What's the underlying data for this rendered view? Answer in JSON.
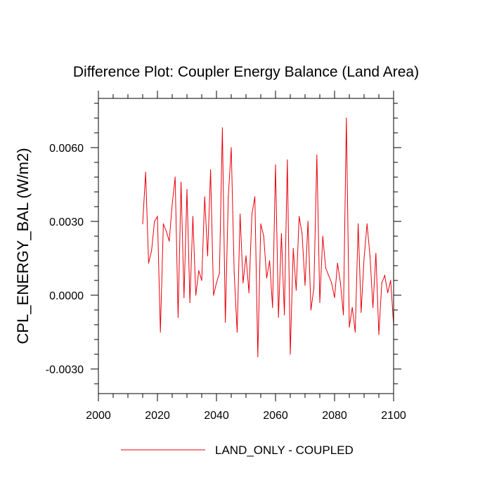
{
  "chart_data": {
    "type": "line",
    "title": "Difference Plot: Coupler Energy Balance (Land Area)",
    "xlabel": "",
    "ylabel": "CPL_ENERGY_BAL  (W/m2)",
    "xlim": [
      2000,
      2100
    ],
    "ylim": [
      -0.004,
      0.008
    ],
    "x_ticks": [
      2000,
      2020,
      2040,
      2060,
      2080,
      2100
    ],
    "x_tick_labels": [
      "2000",
      "2020",
      "2040",
      "2060",
      "2080",
      "2100"
    ],
    "y_ticks": [
      -0.003,
      0.0,
      0.003,
      0.006
    ],
    "y_tick_labels": [
      "-0.0030",
      "0.0000",
      "0.0030",
      "0.0060"
    ],
    "legend_position": "bottom-center",
    "series": [
      {
        "name": "LAND_ONLY - COUPLED",
        "color": "#e8000b",
        "x": [
          2015,
          2016,
          2017,
          2018,
          2019,
          2020,
          2021,
          2022,
          2023,
          2024,
          2025,
          2026,
          2027,
          2028,
          2029,
          2030,
          2031,
          2032,
          2033,
          2034,
          2035,
          2036,
          2037,
          2038,
          2039,
          2040,
          2041,
          2042,
          2043,
          2044,
          2045,
          2046,
          2047,
          2048,
          2049,
          2050,
          2051,
          2052,
          2053,
          2054,
          2055,
          2056,
          2057,
          2058,
          2059,
          2060,
          2061,
          2062,
          2063,
          2064,
          2065,
          2066,
          2067,
          2068,
          2069,
          2070,
          2071,
          2072,
          2073,
          2074,
          2075,
          2076,
          2077,
          2078,
          2079,
          2080,
          2081,
          2082,
          2083,
          2084,
          2085,
          2086,
          2087,
          2088,
          2089,
          2090,
          2091,
          2092,
          2093,
          2094,
          2095,
          2096,
          2097,
          2098,
          2099,
          2100
        ],
        "values": [
          0.0029,
          0.005,
          0.0013,
          0.0018,
          0.003,
          0.0032,
          -0.0015,
          0.0029,
          0.0026,
          0.0022,
          0.0037,
          0.0048,
          -0.0009,
          0.0046,
          -0.0001,
          0.0043,
          -0.0003,
          0.0032,
          0.0,
          0.001,
          0.0006,
          0.004,
          0.0016,
          0.0051,
          0.0,
          0.0005,
          0.0009,
          0.0068,
          -0.0011,
          0.004,
          0.006,
          0.0009,
          -0.0015,
          0.0033,
          0.0005,
          0.0016,
          0.0001,
          0.0033,
          0.004,
          -0.0025,
          0.0029,
          0.0024,
          0.0007,
          0.0014,
          -0.0005,
          0.0053,
          -0.0009,
          0.0025,
          -0.0008,
          0.0055,
          -0.0024,
          0.0019,
          0.0002,
          0.0032,
          0.0025,
          0.0004,
          0.003,
          -0.0006,
          0.0003,
          0.0057,
          -0.0003,
          0.0024,
          0.0011,
          0.0008,
          0.0005,
          -0.0001,
          0.0013,
          0.0005,
          -0.0008,
          0.0072,
          -0.0013,
          -0.0005,
          -0.0015,
          0.0029,
          -0.0007,
          0.0015,
          0.0029,
          0.0016,
          -0.0005,
          0.0017,
          -0.0016,
          0.0005,
          0.0008,
          0.0001,
          0.0006,
          -0.0012
        ]
      }
    ]
  }
}
